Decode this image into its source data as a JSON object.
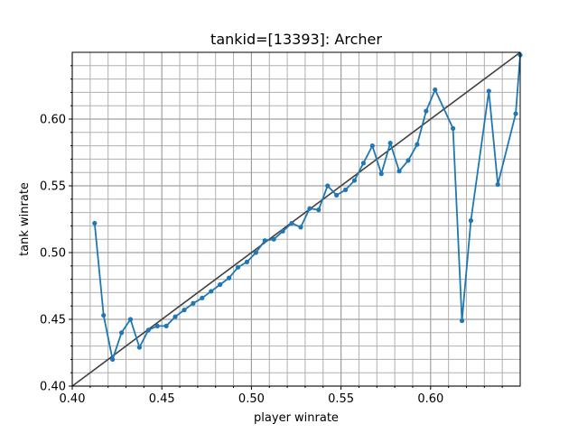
{
  "chart_data": {
    "type": "line",
    "title": "tankid=[13393]: Archer",
    "xlabel": "player winrate",
    "ylabel": "tank winrate",
    "xlim": [
      0.4,
      0.65
    ],
    "ylim": [
      0.4,
      0.65
    ],
    "xticks": [
      0.4,
      0.45,
      0.5,
      0.55,
      0.6
    ],
    "yticks": [
      0.4,
      0.45,
      0.5,
      0.55,
      0.6
    ],
    "xtick_labels": [
      "0.40",
      "0.45",
      "0.50",
      "0.55",
      "0.60"
    ],
    "ytick_labels": [
      "0.40",
      "0.45",
      "0.50",
      "0.55",
      "0.60"
    ],
    "grid": true,
    "minor_grid": true,
    "reference_line": {
      "x": [
        0.4,
        0.65
      ],
      "y": [
        0.4,
        0.65
      ],
      "color": "#404040"
    },
    "series": [
      {
        "color": "#1f77b4",
        "x": [
          0.4125,
          0.4175,
          0.4225,
          0.4275,
          0.4325,
          0.4375,
          0.4425,
          0.4475,
          0.4525,
          0.4575,
          0.4625,
          0.4675,
          0.4725,
          0.4775,
          0.4825,
          0.4875,
          0.4925,
          0.4975,
          0.5025,
          0.5075,
          0.5125,
          0.5175,
          0.5225,
          0.5275,
          0.5325,
          0.5375,
          0.5425,
          0.5475,
          0.5525,
          0.5575,
          0.5625,
          0.5675,
          0.5725,
          0.5775,
          0.5825,
          0.5875,
          0.5925,
          0.5975,
          0.6025,
          0.6125,
          0.6175,
          0.6225,
          0.6325,
          0.6375,
          0.6475,
          0.65
        ],
        "y": [
          0.522,
          0.453,
          0.42,
          0.44,
          0.45,
          0.429,
          0.442,
          0.445,
          0.445,
          0.452,
          0.457,
          0.462,
          0.466,
          0.471,
          0.476,
          0.481,
          0.489,
          0.493,
          0.5,
          0.509,
          0.51,
          0.516,
          0.522,
          0.519,
          0.533,
          0.532,
          0.55,
          0.543,
          0.547,
          0.554,
          0.567,
          0.58,
          0.559,
          0.582,
          0.561,
          0.569,
          0.581,
          0.606,
          0.622,
          0.593,
          0.449,
          0.524,
          0.621,
          0.551,
          0.604,
          0.648
        ]
      }
    ]
  }
}
